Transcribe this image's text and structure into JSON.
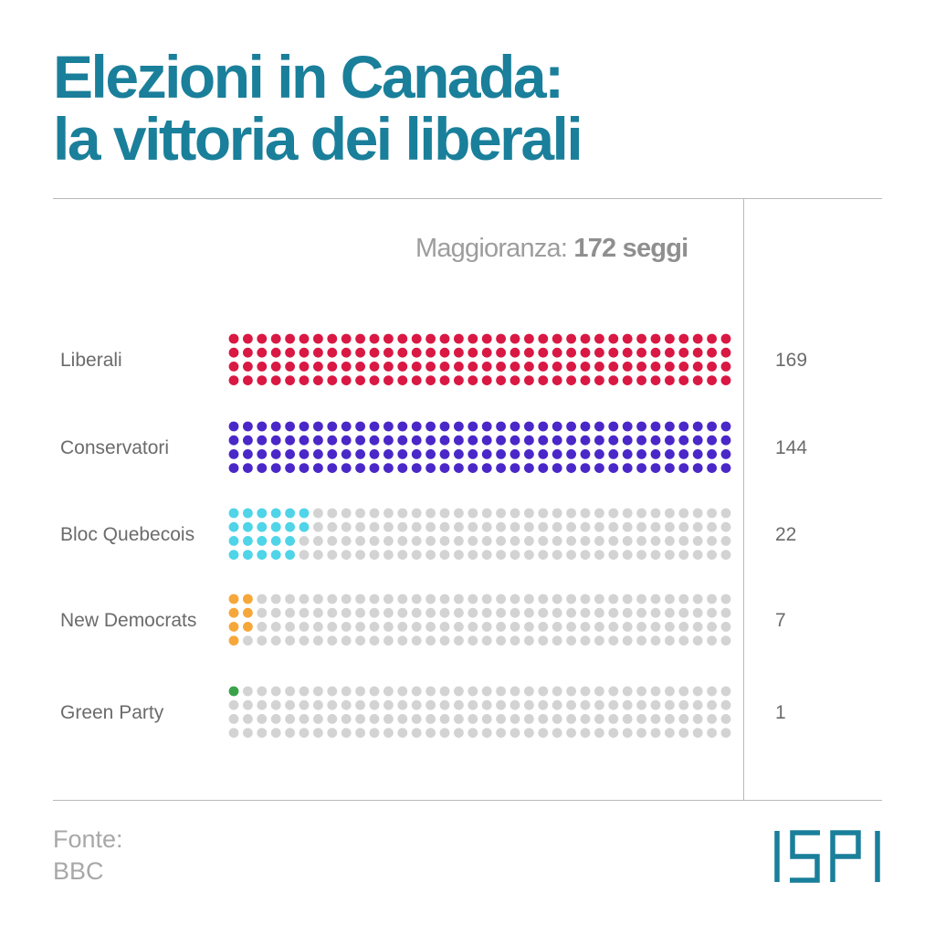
{
  "title": {
    "line1": "Elezioni in Canada:",
    "line2": "la vittoria dei liberali"
  },
  "majority": {
    "label": "Maggioranza:",
    "value": "172 seggi"
  },
  "source": {
    "label": "Fonte:",
    "value": "BBC"
  },
  "logo": {
    "text": "ISPI"
  },
  "colors": {
    "title": "#1a7f9a",
    "empty_seat": "#d3d3d3",
    "rule": "#b9b9b9"
  },
  "chart_data": {
    "type": "waffle",
    "dots_per_column": 4,
    "columns_per_row": 36,
    "majority_seats": 172,
    "categories": [
      "Liberali",
      "Conservatori",
      "Bloc Quebecois",
      "New Democrats",
      "Green Party"
    ],
    "values": [
      169,
      144,
      22,
      7,
      1
    ],
    "series": [
      {
        "name": "Liberali",
        "value": 169,
        "label": "169",
        "color": "#d91843"
      },
      {
        "name": "Conservatori",
        "value": 144,
        "label": "144",
        "color": "#4a27c8"
      },
      {
        "name": "Bloc Quebecois",
        "value": 22,
        "label": "22",
        "color": "#4fd4e8"
      },
      {
        "name": "New Democrats",
        "value": 7,
        "label": "7",
        "color": "#f6a73a"
      },
      {
        "name": "Green Party",
        "value": 1,
        "label": "1",
        "color": "#3aa34a"
      }
    ]
  }
}
